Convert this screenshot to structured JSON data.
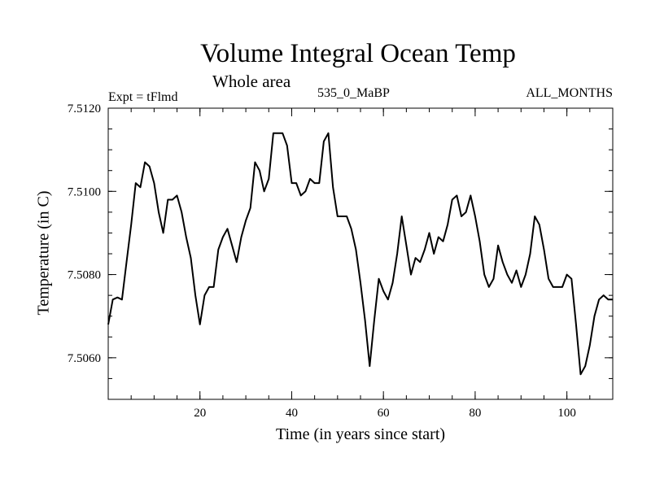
{
  "chart_data": {
    "type": "line",
    "title": "Volume Integral Ocean Temp",
    "subtitle": "Whole area",
    "left_label": "Expt = tFlmd",
    "center_label": "535_0_MaBP",
    "right_label": "ALL_MONTHS",
    "xlabel": "Time (in years since start)",
    "ylabel": "Temperature (in C)",
    "xlim": [
      0,
      110
    ],
    "ylim": [
      7.505,
      7.512
    ],
    "xticks": [
      20,
      40,
      60,
      80,
      100
    ],
    "xtick_labels": [
      "20",
      "40",
      "60",
      "80",
      "100"
    ],
    "yticks": [
      7.506,
      7.508,
      7.51,
      7.512
    ],
    "ytick_labels": [
      "7.5060",
      "7.5080",
      "7.5100",
      "7.5120"
    ],
    "grid": false,
    "series": [
      {
        "name": "Volume Integral Ocean Temp",
        "x": [
          0,
          1,
          2,
          3,
          4,
          5,
          6,
          7,
          8,
          9,
          10,
          11,
          12,
          13,
          14,
          15,
          16,
          17,
          18,
          19,
          20,
          21,
          22,
          23,
          24,
          25,
          26,
          27,
          28,
          29,
          30,
          31,
          32,
          33,
          34,
          35,
          36,
          37,
          38,
          39,
          40,
          41,
          42,
          43,
          44,
          45,
          46,
          47,
          48,
          49,
          50,
          51,
          52,
          53,
          54,
          55,
          56,
          57,
          58,
          59,
          60,
          61,
          62,
          63,
          64,
          65,
          66,
          67,
          68,
          69,
          70,
          71,
          72,
          73,
          74,
          75,
          76,
          77,
          78,
          79,
          80,
          81,
          82,
          83,
          84,
          85,
          86,
          87,
          88,
          89,
          90,
          91,
          92,
          93,
          94,
          95,
          96,
          97,
          98,
          99,
          100,
          101,
          102,
          103,
          104,
          105,
          106,
          107,
          108,
          109,
          110
        ],
        "values": [
          7.5068,
          7.5074,
          7.50745,
          7.5074,
          7.5083,
          7.5092,
          7.5102,
          7.5101,
          7.5107,
          7.5106,
          7.5102,
          7.5095,
          7.509,
          7.5098,
          7.5098,
          7.5099,
          7.5095,
          7.5089,
          7.5084,
          7.5075,
          7.5068,
          7.5075,
          7.5077,
          7.5077,
          7.5086,
          7.5089,
          7.5091,
          7.5087,
          7.5083,
          7.5089,
          7.5093,
          7.5096,
          7.5107,
          7.5105,
          7.51,
          7.5103,
          7.5114,
          7.5114,
          7.5114,
          7.5111,
          7.5102,
          7.5102,
          7.5099,
          7.51,
          7.5103,
          7.5102,
          7.5102,
          7.5112,
          7.5114,
          7.5101,
          7.5094,
          7.5094,
          7.5094,
          7.5091,
          7.5086,
          7.5078,
          7.5069,
          7.5058,
          7.5069,
          7.5079,
          7.5076,
          7.5074,
          7.5078,
          7.5085,
          7.5094,
          7.5087,
          7.508,
          7.5084,
          7.5083,
          7.5086,
          7.509,
          7.5085,
          7.5089,
          7.5088,
          7.5092,
          7.5098,
          7.5099,
          7.5094,
          7.5095,
          7.5099,
          7.5094,
          7.5088,
          7.508,
          7.5077,
          7.5079,
          7.5087,
          7.5083,
          7.508,
          7.5078,
          7.5081,
          7.5077,
          7.508,
          7.5085,
          7.5094,
          7.5092,
          7.5086,
          7.5079,
          7.5077,
          7.5077,
          7.5077,
          7.508,
          7.5079,
          7.5068,
          7.5056,
          7.5058,
          7.5063,
          7.507,
          7.5074,
          7.5075,
          7.5074,
          7.5074
        ]
      }
    ]
  }
}
